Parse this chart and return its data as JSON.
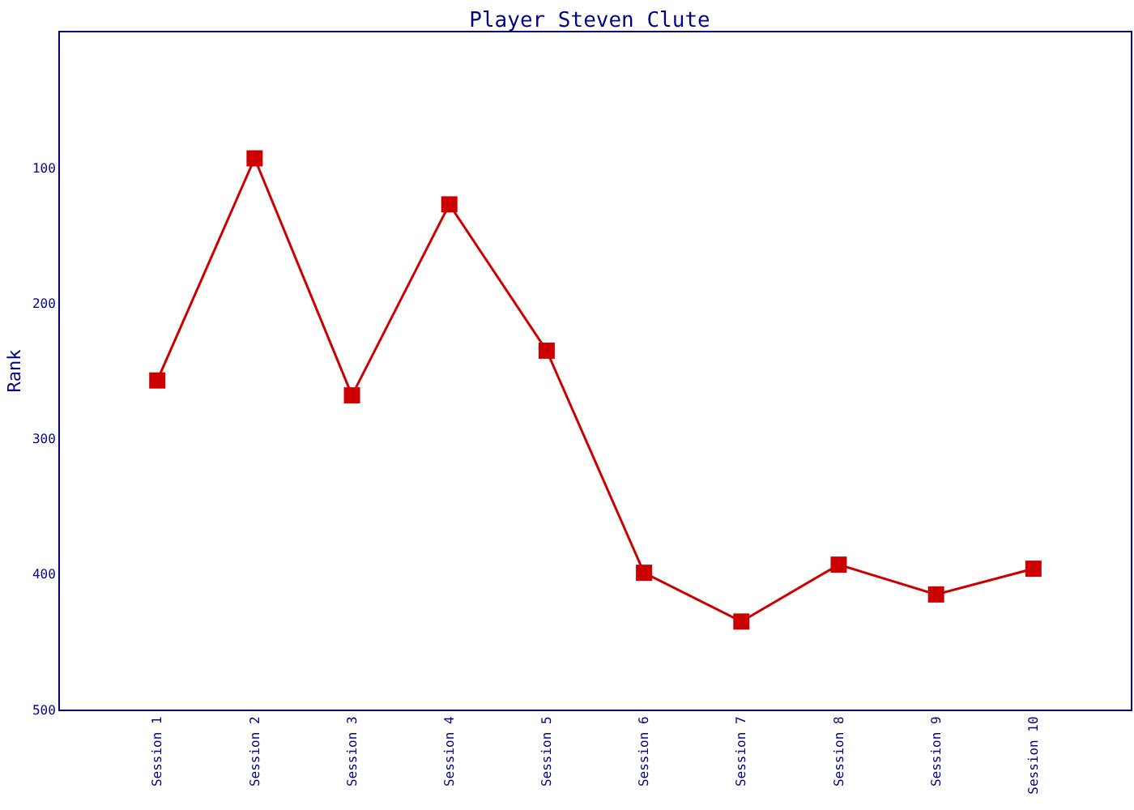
{
  "chart_data": {
    "type": "line",
    "title": "Player Steven Clute",
    "ylabel": "Rank",
    "categories": [
      "Session 1",
      "Session 2",
      "Session 3",
      "Session 4",
      "Session 5",
      "Session 6",
      "Session 7",
      "Session 8",
      "Session 9",
      "Session 10"
    ],
    "series": [
      {
        "color": "#cc0000",
        "values": [
          257,
          93,
          268,
          127,
          235,
          399,
          435,
          393,
          415,
          396
        ]
      }
    ],
    "ylim": [
      500,
      0
    ],
    "yticks": [
      100,
      200,
      300,
      400,
      500
    ],
    "grid": false,
    "marker": "square",
    "line_style": "solid"
  }
}
